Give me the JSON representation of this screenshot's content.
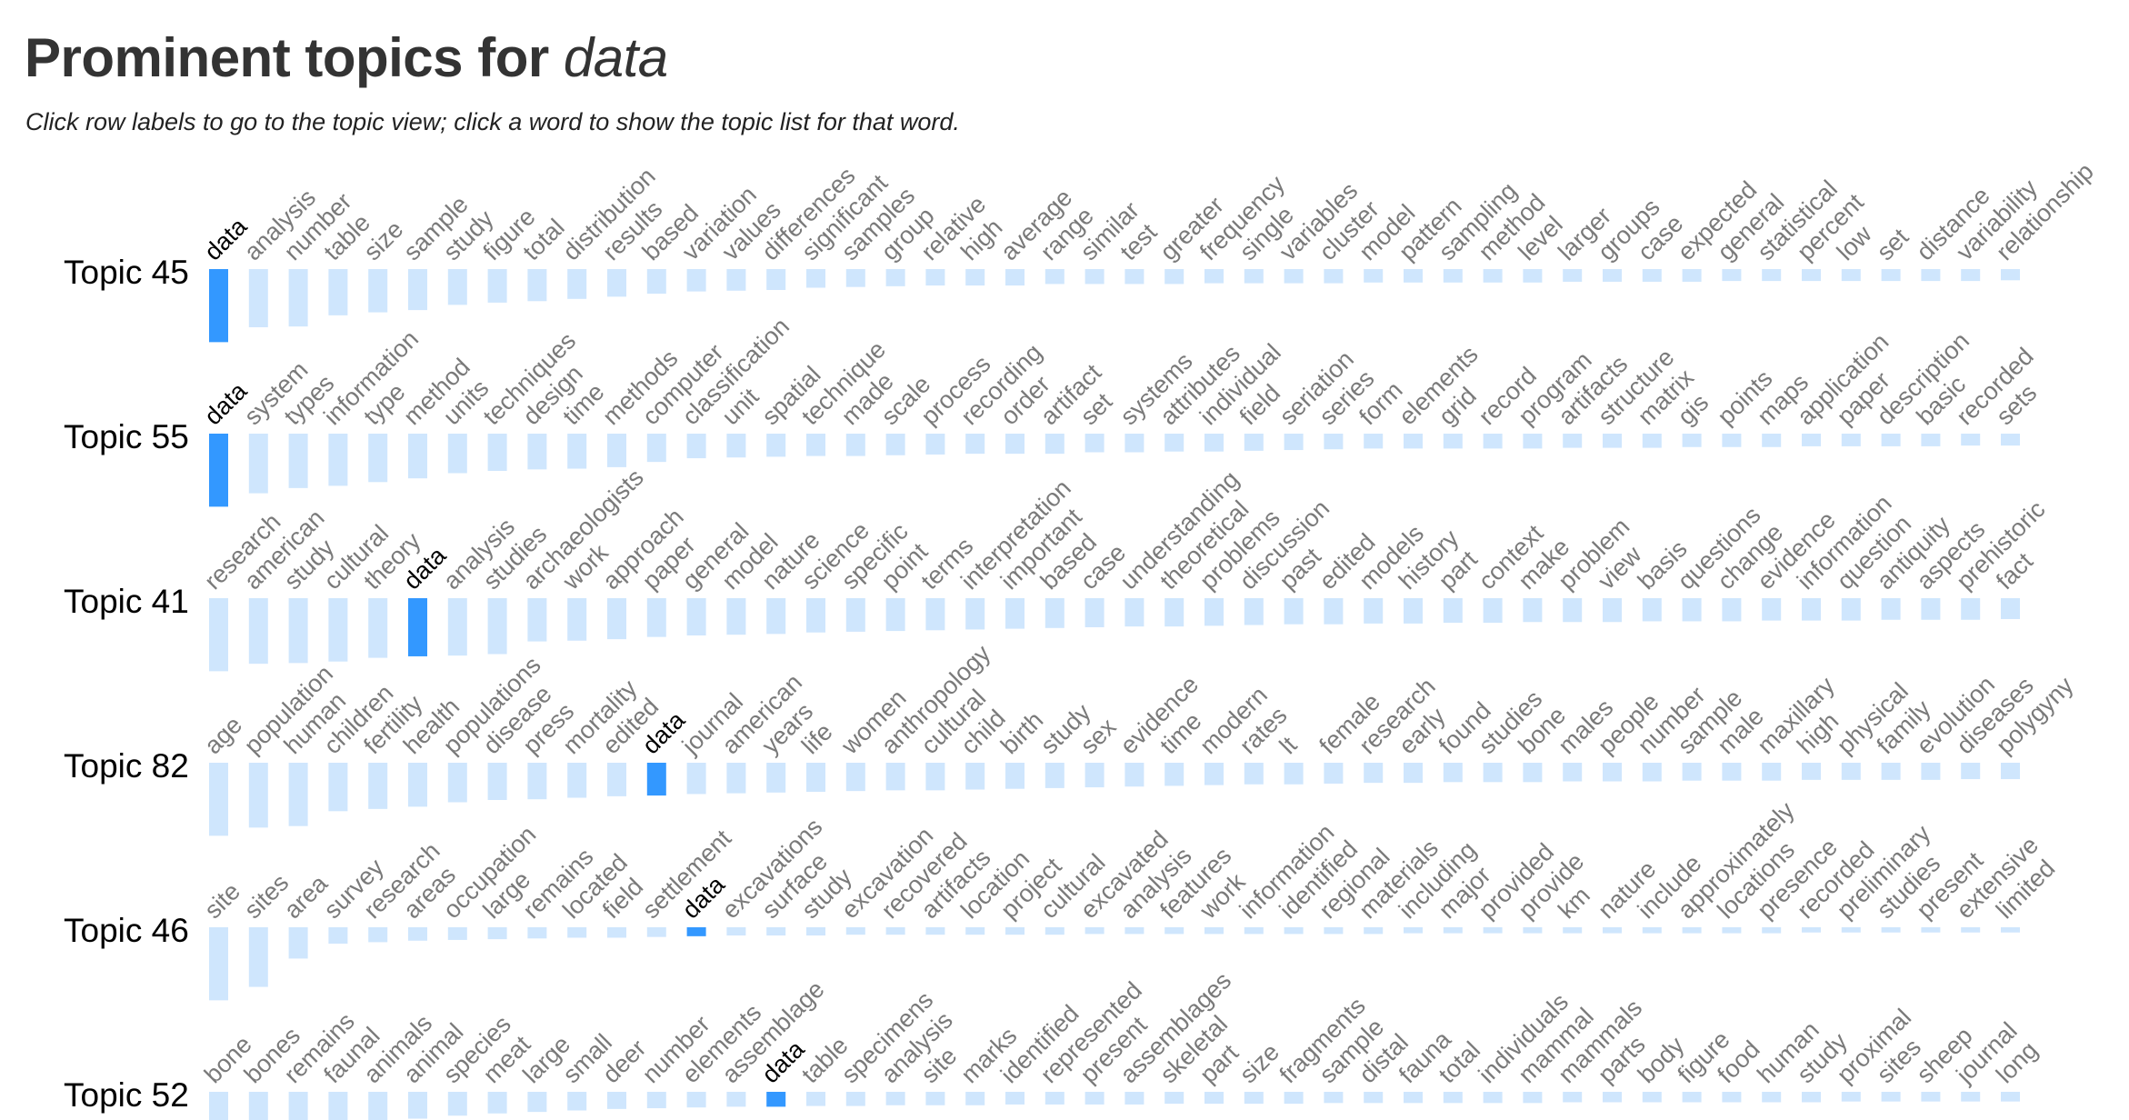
{
  "page": {
    "title_prefix": "Prominent topics for ",
    "query_word": "data",
    "instructions": "Click row labels to go to the topic view; click a word to show the topic list for that word."
  },
  "colors": {
    "bar": "#cfe6fd",
    "bar_highlight": "#3398ff",
    "word": "#7a7a7a",
    "word_highlight": "#000000"
  },
  "chart_data": {
    "type": "bar",
    "highlight_word": "data",
    "topics": [
      {
        "label": "Topic 45",
        "words": [
          "data",
          "analysis",
          "number",
          "table",
          "size",
          "sample",
          "study",
          "figure",
          "total",
          "distribution",
          "results",
          "based",
          "variation",
          "values",
          "differences",
          "significant",
          "samples",
          "group",
          "relative",
          "high",
          "average",
          "range",
          "similar",
          "test",
          "greater",
          "frequency",
          "single",
          "variables",
          "cluster",
          "model",
          "pattern",
          "sampling",
          "method",
          "level",
          "larger",
          "groups",
          "case",
          "expected",
          "general",
          "statistical",
          "percent",
          "low",
          "set",
          "distance",
          "variability",
          "relationship"
        ],
        "weights": [
          0.98,
          0.78,
          0.77,
          0.62,
          0.58,
          0.55,
          0.48,
          0.45,
          0.43,
          0.4,
          0.37,
          0.33,
          0.3,
          0.29,
          0.28,
          0.25,
          0.24,
          0.23,
          0.22,
          0.22,
          0.22,
          0.2,
          0.2,
          0.2,
          0.2,
          0.19,
          0.19,
          0.19,
          0.19,
          0.18,
          0.18,
          0.18,
          0.18,
          0.18,
          0.17,
          0.17,
          0.17,
          0.17,
          0.16,
          0.16,
          0.16,
          0.16,
          0.16,
          0.16,
          0.16,
          0.15
        ]
      },
      {
        "label": "Topic 55",
        "words": [
          "data",
          "system",
          "types",
          "information",
          "type",
          "method",
          "units",
          "techniques",
          "design",
          "time",
          "methods",
          "computer",
          "classification",
          "unit",
          "spatial",
          "technique",
          "made",
          "scale",
          "process",
          "recording",
          "order",
          "artifact",
          "set",
          "systems",
          "attributes",
          "individual",
          "field",
          "seriation",
          "series",
          "form",
          "elements",
          "grid",
          "record",
          "program",
          "artifacts",
          "structure",
          "matrix",
          "gis",
          "points",
          "maps",
          "application",
          "paper",
          "description",
          "basic",
          "recorded",
          "sets"
        ],
        "weights": [
          0.98,
          0.8,
          0.73,
          0.7,
          0.65,
          0.6,
          0.53,
          0.5,
          0.48,
          0.47,
          0.45,
          0.38,
          0.33,
          0.32,
          0.31,
          0.3,
          0.3,
          0.29,
          0.28,
          0.27,
          0.27,
          0.27,
          0.25,
          0.25,
          0.24,
          0.24,
          0.23,
          0.22,
          0.21,
          0.2,
          0.2,
          0.2,
          0.2,
          0.2,
          0.19,
          0.19,
          0.19,
          0.18,
          0.18,
          0.18,
          0.17,
          0.17,
          0.17,
          0.17,
          0.16,
          0.16
        ]
      },
      {
        "label": "Topic 41",
        "words": [
          "research",
          "american",
          "study",
          "cultural",
          "theory",
          "data",
          "analysis",
          "studies",
          "archaeologists",
          "work",
          "approach",
          "paper",
          "general",
          "model",
          "nature",
          "science",
          "specific",
          "point",
          "terms",
          "interpretation",
          "important",
          "based",
          "case",
          "understanding",
          "theoretical",
          "problems",
          "discussion",
          "past",
          "edited",
          "models",
          "history",
          "part",
          "context",
          "make",
          "problem",
          "view",
          "basis",
          "questions",
          "change",
          "evidence",
          "information",
          "question",
          "antiquity",
          "aspects",
          "prehistoric",
          "fact"
        ],
        "weights": [
          0.98,
          0.88,
          0.87,
          0.85,
          0.8,
          0.78,
          0.77,
          0.75,
          0.58,
          0.57,
          0.55,
          0.52,
          0.5,
          0.49,
          0.48,
          0.46,
          0.45,
          0.44,
          0.43,
          0.42,
          0.41,
          0.4,
          0.39,
          0.38,
          0.38,
          0.37,
          0.36,
          0.35,
          0.35,
          0.34,
          0.34,
          0.33,
          0.33,
          0.32,
          0.32,
          0.32,
          0.31,
          0.31,
          0.31,
          0.3,
          0.3,
          0.3,
          0.29,
          0.29,
          0.29,
          0.28
        ]
      },
      {
        "label": "Topic 82",
        "words": [
          "age",
          "population",
          "human",
          "children",
          "fertility",
          "health",
          "populations",
          "disease",
          "press",
          "mortality",
          "edited",
          "data",
          "journal",
          "american",
          "years",
          "life",
          "women",
          "anthropology",
          "cultural",
          "child",
          "birth",
          "study",
          "sex",
          "evidence",
          "time",
          "modern",
          "rates",
          "lt",
          "female",
          "research",
          "early",
          "found",
          "studies",
          "bone",
          "males",
          "people",
          "number",
          "sample",
          "male",
          "maxillary",
          "high",
          "physical",
          "family",
          "evolution",
          "diseases",
          "polygyny"
        ],
        "weights": [
          0.98,
          0.87,
          0.85,
          0.65,
          0.62,
          0.59,
          0.53,
          0.5,
          0.49,
          0.47,
          0.45,
          0.44,
          0.42,
          0.41,
          0.4,
          0.39,
          0.38,
          0.37,
          0.37,
          0.36,
          0.35,
          0.34,
          0.33,
          0.32,
          0.31,
          0.3,
          0.29,
          0.29,
          0.28,
          0.27,
          0.27,
          0.26,
          0.26,
          0.26,
          0.25,
          0.25,
          0.25,
          0.24,
          0.24,
          0.24,
          0.23,
          0.23,
          0.23,
          0.23,
          0.22,
          0.22
        ]
      },
      {
        "label": "Topic 46",
        "words": [
          "site",
          "sites",
          "area",
          "survey",
          "research",
          "areas",
          "occupation",
          "large",
          "remains",
          "located",
          "field",
          "settlement",
          "data",
          "excavations",
          "surface",
          "study",
          "excavation",
          "recovered",
          "artifacts",
          "location",
          "project",
          "cultural",
          "excavated",
          "analysis",
          "features",
          "work",
          "information",
          "identified",
          "regional",
          "materials",
          "including",
          "major",
          "provided",
          "provide",
          "km",
          "nature",
          "include",
          "approximately",
          "locations",
          "presence",
          "recorded",
          "preliminary",
          "studies",
          "present",
          "extensive",
          "limited"
        ],
        "weights": [
          0.98,
          0.8,
          0.42,
          0.22,
          0.2,
          0.18,
          0.17,
          0.16,
          0.15,
          0.14,
          0.14,
          0.13,
          0.12,
          0.11,
          0.11,
          0.11,
          0.1,
          0.1,
          0.1,
          0.1,
          0.1,
          0.1,
          0.09,
          0.09,
          0.09,
          0.09,
          0.09,
          0.09,
          0.09,
          0.09,
          0.08,
          0.08,
          0.08,
          0.08,
          0.08,
          0.08,
          0.08,
          0.08,
          0.08,
          0.08,
          0.07,
          0.07,
          0.07,
          0.07,
          0.07,
          0.07
        ]
      },
      {
        "label": "Topic 52",
        "words": [
          "bone",
          "bones",
          "remains",
          "faunal",
          "animals",
          "animal",
          "species",
          "meat",
          "large",
          "small",
          "deer",
          "number",
          "elements",
          "assemblage",
          "data",
          "table",
          "specimens",
          "analysis",
          "site",
          "marks",
          "identified",
          "represented",
          "present",
          "assemblages",
          "skeletal",
          "part",
          "size",
          "fragments",
          "sample",
          "distal",
          "fauna",
          "total",
          "individuals",
          "mammal",
          "mammals",
          "parts",
          "body",
          "figure",
          "food",
          "human",
          "study",
          "proximal",
          "sites",
          "sheep",
          "journal",
          "long"
        ],
        "weights": [
          0.98,
          0.72,
          0.5,
          0.45,
          0.4,
          0.36,
          0.32,
          0.29,
          0.27,
          0.25,
          0.23,
          0.22,
          0.21,
          0.2,
          0.2,
          0.19,
          0.19,
          0.18,
          0.18,
          0.18,
          0.17,
          0.17,
          0.17,
          0.17,
          0.16,
          0.16,
          0.16,
          0.16,
          0.15,
          0.15,
          0.15,
          0.15,
          0.15,
          0.15,
          0.14,
          0.14,
          0.14,
          0.14,
          0.14,
          0.14,
          0.14,
          0.13,
          0.13,
          0.13,
          0.13,
          0.13
        ]
      }
    ]
  }
}
